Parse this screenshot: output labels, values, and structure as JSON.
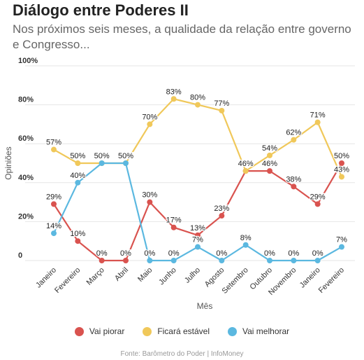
{
  "title": "Diálogo entre Poderes II",
  "subtitle": "Nos próximos seis meses, a qualidade da relação entre governo e Congresso...",
  "source": "Fonte: Barômetro do Poder | InfoMoney",
  "colors": {
    "piorar": "#d9534f",
    "estavel": "#f0c85a",
    "melhorar": "#5bb8e0"
  },
  "chart_data": {
    "type": "line",
    "xlabel": "Mês",
    "ylabel": "Opiniões",
    "ylim": [
      0,
      100
    ],
    "yticks": [
      "0",
      "20%",
      "40%",
      "60%",
      "80%",
      "100%"
    ],
    "grid": true,
    "legend_position": "bottom",
    "categories": [
      "Janeiro",
      "Fevereiro",
      "Março",
      "Abril",
      "Maio",
      "Junho",
      "Julho",
      "Agosto",
      "Setembro",
      "Outubro",
      "Novembro",
      "Janeiro",
      "Fevereiro"
    ],
    "series": [
      {
        "name": "Vai piorar",
        "color": "#d9534f",
        "values": [
          29,
          10,
          0,
          0,
          30,
          17,
          13,
          23,
          46,
          46,
          38,
          29,
          50
        ],
        "labels": [
          "29%",
          "10%",
          "0%",
          "0%",
          "30%",
          "17%",
          "13%",
          "23%",
          "46%",
          "46%",
          "38%",
          "29%",
          "50%"
        ]
      },
      {
        "name": "Ficará estável",
        "color": "#f0c85a",
        "values": [
          57,
          50,
          50,
          50,
          70,
          83,
          80,
          77,
          46,
          54,
          62,
          71,
          43
        ],
        "labels": [
          "57%",
          "50%",
          "50%",
          "50%",
          "70%",
          "83%",
          "80%",
          "77%",
          "46%",
          "54%",
          "62%",
          "71%",
          "43%"
        ]
      },
      {
        "name": "Vai melhorar",
        "color": "#5bb8e0",
        "values": [
          14,
          40,
          50,
          50,
          0,
          0,
          7,
          0,
          8,
          0,
          0,
          0,
          7
        ],
        "labels": [
          "14%",
          "40%",
          "50%",
          "50%",
          "0%",
          "0%",
          "7%",
          "0%",
          "8%",
          "0%",
          "0%",
          "0%",
          "7%"
        ]
      }
    ]
  }
}
